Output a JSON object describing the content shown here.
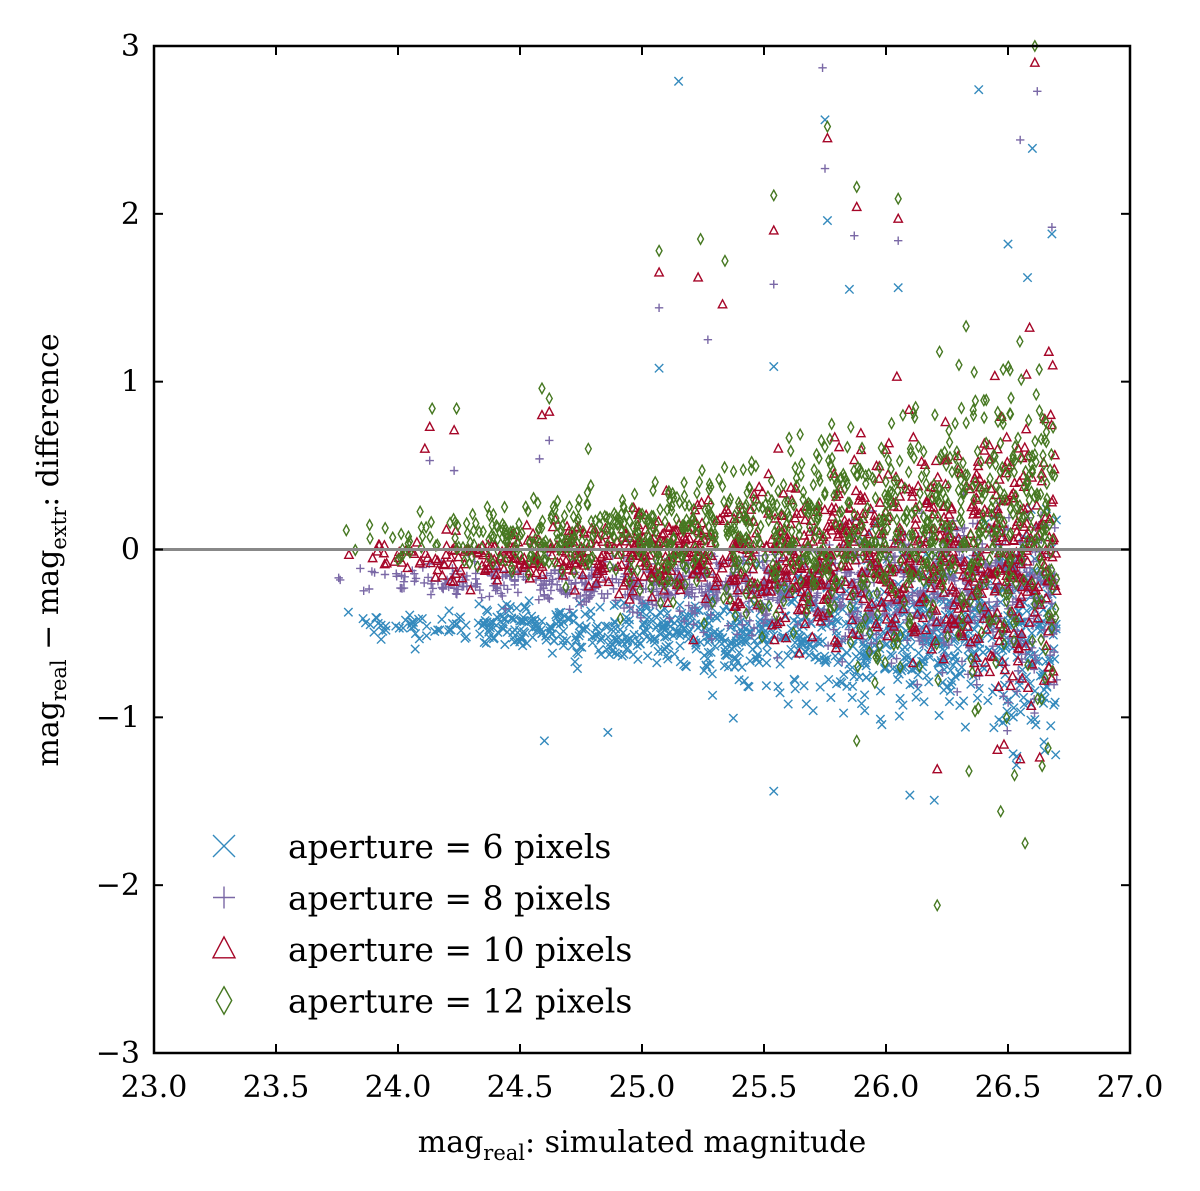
{
  "chart_data": {
    "type": "scatter",
    "xlim": [
      23.0,
      27.0
    ],
    "ylim": [
      -3,
      3
    ],
    "xticks": [
      "23.0",
      "23.5",
      "24.0",
      "24.5",
      "25.0",
      "25.5",
      "26.0",
      "26.5",
      "27.0"
    ],
    "yticks": [
      "3",
      "2",
      "1",
      "0",
      "−1",
      "−2",
      "−3"
    ],
    "xlabel": {
      "main": "mag",
      "sub": "real",
      "rest": ": simulated magnitude"
    },
    "ylabel": {
      "a": "mag",
      "a_sub": "real",
      "mid": " − mag",
      "b_sub": "extr",
      "rest": ": difference"
    },
    "reference_line": {
      "y": 0,
      "color": "#888888"
    },
    "legend_position": "lower-left",
    "grid": false,
    "series": [
      {
        "name": "aperture = 6 pixels",
        "marker": "x",
        "color": "#348ABD",
        "offset": -0.45,
        "trend": -0.07,
        "spread": 0.09,
        "n": 1100,
        "outliers": [
          [
            25.15,
            2.79
          ],
          [
            25.75,
            2.56
          ],
          [
            26.38,
            2.74
          ],
          [
            25.76,
            1.96
          ],
          [
            25.07,
            1.08
          ],
          [
            25.54,
            1.09
          ],
          [
            25.85,
            1.55
          ],
          [
            26.05,
            1.56
          ],
          [
            26.6,
            2.39
          ],
          [
            26.68,
            1.88
          ],
          [
            24.6,
            -1.14
          ],
          [
            24.86,
            -1.09
          ],
          [
            25.54,
            -1.44
          ],
          [
            26.5,
            1.82
          ],
          [
            26.58,
            1.62
          ]
        ]
      },
      {
        "name": "aperture = 8 pixels",
        "marker": "+",
        "color": "#7A68A6",
        "offset": -0.18,
        "trend": -0.06,
        "spread": 0.08,
        "n": 1100,
        "outliers": [
          [
            25.74,
            2.87
          ],
          [
            25.75,
            2.27
          ],
          [
            26.62,
            2.73
          ],
          [
            25.07,
            1.44
          ],
          [
            25.27,
            1.25
          ],
          [
            25.54,
            1.58
          ],
          [
            25.87,
            1.87
          ],
          [
            26.05,
            1.84
          ],
          [
            24.13,
            0.53
          ],
          [
            24.23,
            0.47
          ],
          [
            24.62,
            0.65
          ],
          [
            24.58,
            0.54
          ],
          [
            26.68,
            1.92
          ],
          [
            26.55,
            2.44
          ]
        ]
      },
      {
        "name": "aperture = 10 pixels",
        "marker": "triangle",
        "color": "#A60628",
        "offset": -0.05,
        "trend": 0.02,
        "spread": 0.12,
        "n": 1100,
        "outliers": [
          [
            26.61,
            2.9
          ],
          [
            25.76,
            2.45
          ],
          [
            25.07,
            1.65
          ],
          [
            25.23,
            1.62
          ],
          [
            25.33,
            1.46
          ],
          [
            25.54,
            1.9
          ],
          [
            25.88,
            2.04
          ],
          [
            26.05,
            1.97
          ],
          [
            24.11,
            0.6
          ],
          [
            24.13,
            0.73
          ],
          [
            24.23,
            0.71
          ],
          [
            24.59,
            0.8
          ],
          [
            24.62,
            0.82
          ],
          [
            26.21,
            -1.31
          ],
          [
            26.55,
            -1.25
          ],
          [
            26.63,
            -1.24
          ]
        ]
      },
      {
        "name": "aperture = 12 pixels",
        "marker": "diamond",
        "color": "#467821",
        "offset": 0.05,
        "trend": 0.06,
        "spread": 0.14,
        "n": 1100,
        "outliers": [
          [
            26.61,
            3.0
          ],
          [
            25.76,
            2.52
          ],
          [
            25.07,
            1.78
          ],
          [
            25.24,
            1.85
          ],
          [
            25.34,
            1.72
          ],
          [
            25.54,
            2.11
          ],
          [
            25.88,
            2.16
          ],
          [
            26.05,
            2.09
          ],
          [
            24.14,
            0.84
          ],
          [
            24.24,
            0.84
          ],
          [
            24.59,
            0.96
          ],
          [
            24.62,
            0.9
          ],
          [
            24.78,
            0.6
          ],
          [
            26.21,
            -2.12
          ],
          [
            26.57,
            -1.75
          ],
          [
            26.47,
            -1.56
          ],
          [
            25.88,
            -1.14
          ],
          [
            26.64,
            -1.29
          ],
          [
            26.34,
            -1.32
          ]
        ]
      }
    ]
  }
}
